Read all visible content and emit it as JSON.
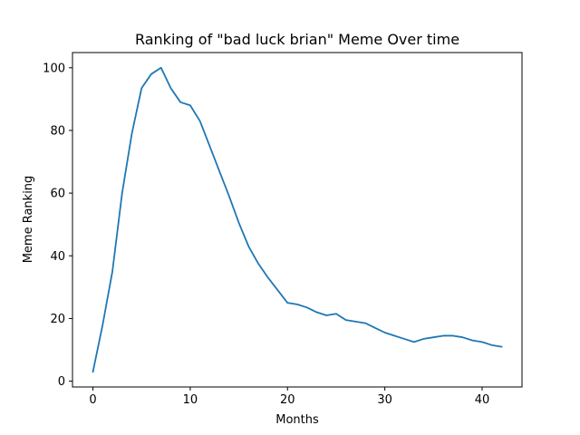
{
  "chart_data": {
    "type": "line",
    "title": "Ranking of \"bad luck brian\" Meme Over time",
    "xlabel": "Months",
    "ylabel": "Meme Ranking",
    "xlim": [
      -2.1,
      44.1
    ],
    "ylim": [
      -1.85,
      104.85
    ],
    "xticks": [
      0,
      10,
      20,
      30,
      40
    ],
    "yticks": [
      0,
      20,
      40,
      60,
      80,
      100
    ],
    "grid": false,
    "series": [
      {
        "color": "#1f77b4",
        "x": [
          0,
          1,
          2,
          3,
          4,
          5,
          6,
          7,
          8,
          9,
          10,
          11,
          12,
          13,
          14,
          15,
          16,
          17,
          18,
          19,
          20,
          21,
          22,
          23,
          24,
          25,
          26,
          27,
          28,
          29,
          30,
          31,
          32,
          33,
          34,
          35,
          36,
          37,
          38,
          39,
          40,
          41,
          42
        ],
        "y": [
          3,
          18,
          35,
          60,
          79,
          93.5,
          98,
          100,
          93.5,
          89,
          88,
          83,
          75,
          67,
          59,
          50.5,
          43,
          37.5,
          33,
          29,
          25,
          24.5,
          23.5,
          22,
          21,
          21.5,
          19.5,
          19,
          18.5,
          17,
          15.5,
          14.5,
          13.5,
          12.5,
          13.5,
          14,
          14.5,
          14.5,
          14,
          13,
          12.5,
          11.5,
          11
        ]
      }
    ]
  }
}
